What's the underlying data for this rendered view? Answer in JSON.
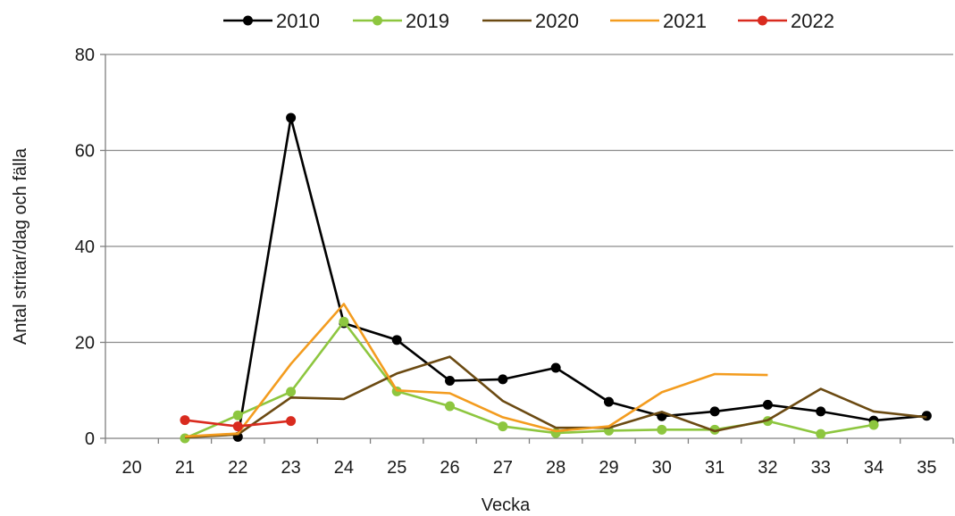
{
  "chart_data": {
    "type": "line",
    "xlabel": "Vecka",
    "ylabel": "Antal stritar/dag och fälla",
    "x_ticks": [
      "20",
      "21",
      "22",
      "23",
      "24",
      "25",
      "26",
      "27",
      "28",
      "29",
      "30",
      "31",
      "32",
      "33",
      "34",
      "35"
    ],
    "xlim": [
      20,
      35
    ],
    "ylim": [
      0,
      80
    ],
    "y_ticks": [
      "0",
      "20",
      "40",
      "60",
      "80"
    ],
    "grid": "horizontal",
    "legend_position": "top",
    "series": [
      {
        "name": "2010",
        "color": "#000000",
        "markers": true,
        "x": [
          22,
          23,
          24,
          25,
          26,
          27,
          28,
          29,
          30,
          31,
          32,
          33,
          34,
          35
        ],
        "values": [
          0.3,
          66.8,
          24,
          20.5,
          12,
          12.3,
          14.7,
          7.6,
          4.6,
          5.6,
          7,
          5.6,
          3.7,
          4.7
        ]
      },
      {
        "name": "2019",
        "color": "#8dc63f",
        "markers": true,
        "x": [
          21,
          22,
          23,
          24,
          25,
          26,
          27,
          28,
          29,
          30,
          31,
          32,
          33,
          34
        ],
        "values": [
          0,
          4.8,
          9.7,
          24.3,
          9.8,
          6.7,
          2.5,
          1.1,
          1.6,
          1.8,
          1.8,
          3.6,
          0.9,
          2.8
        ]
      },
      {
        "name": "2020",
        "color": "#6b4a12",
        "markers": false,
        "x": [
          21,
          22,
          23,
          24,
          25,
          26,
          27,
          28,
          29,
          30,
          31,
          32,
          33,
          34,
          35
        ],
        "values": [
          0.2,
          0.8,
          8.5,
          8.2,
          13.5,
          17,
          7.8,
          2.2,
          2.2,
          5.5,
          1.5,
          3.8,
          10.3,
          5.6,
          4.4
        ]
      },
      {
        "name": "2021",
        "color": "#f39c1f",
        "markers": false,
        "x": [
          21,
          22,
          23,
          24,
          25,
          26,
          27,
          28,
          29,
          30,
          31,
          32
        ],
        "values": [
          0.4,
          1,
          15.5,
          28,
          10,
          9.4,
          4.4,
          1.5,
          2.5,
          9.6,
          13.4,
          13.2
        ]
      },
      {
        "name": "2022",
        "color": "#d92b1f",
        "markers": true,
        "x": [
          21,
          22,
          23
        ],
        "values": [
          3.8,
          2.5,
          3.6
        ]
      }
    ]
  }
}
